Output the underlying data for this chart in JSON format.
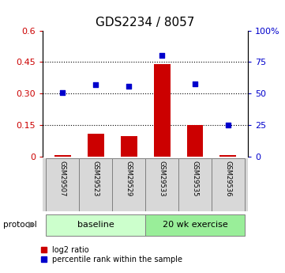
{
  "title": "GDS2234 / 8057",
  "samples": [
    "GSM29507",
    "GSM29523",
    "GSM29529",
    "GSM29533",
    "GSM29535",
    "GSM29536"
  ],
  "log2_ratio": [
    0.01,
    0.11,
    0.1,
    0.44,
    0.15,
    0.01
  ],
  "percentile_rank": [
    51,
    57,
    56,
    80,
    58,
    25
  ],
  "bar_color": "#cc0000",
  "dot_color": "#0000cc",
  "ylim_left": [
    0,
    0.6
  ],
  "ylim_right": [
    0,
    100
  ],
  "yticks_left": [
    0,
    0.15,
    0.3,
    0.45,
    0.6
  ],
  "yticks_right": [
    0,
    25,
    50,
    75,
    100
  ],
  "ytick_labels_left": [
    "0",
    "0.15",
    "0.30",
    "0.45",
    "0.6"
  ],
  "ytick_labels_right": [
    "0",
    "25",
    "50",
    "75",
    "100%"
  ],
  "hlines": [
    0.15,
    0.3,
    0.45
  ],
  "protocol_groups": [
    {
      "label": "baseline",
      "indices": [
        0,
        1,
        2
      ],
      "color": "#ccffcc"
    },
    {
      "label": "20 wk exercise",
      "indices": [
        3,
        4,
        5
      ],
      "color": "#99ee99"
    }
  ],
  "protocol_label": "protocol",
  "legend_items": [
    {
      "color": "#cc0000",
      "label": "log2 ratio"
    },
    {
      "color": "#0000cc",
      "label": "percentile rank within the sample"
    }
  ],
  "bg_color": "#d8d8d8",
  "plot_bg": "white",
  "title_fontsize": 11,
  "tick_fontsize": 8,
  "sample_fontsize": 6,
  "protocol_fontsize": 8,
  "legend_fontsize": 7
}
